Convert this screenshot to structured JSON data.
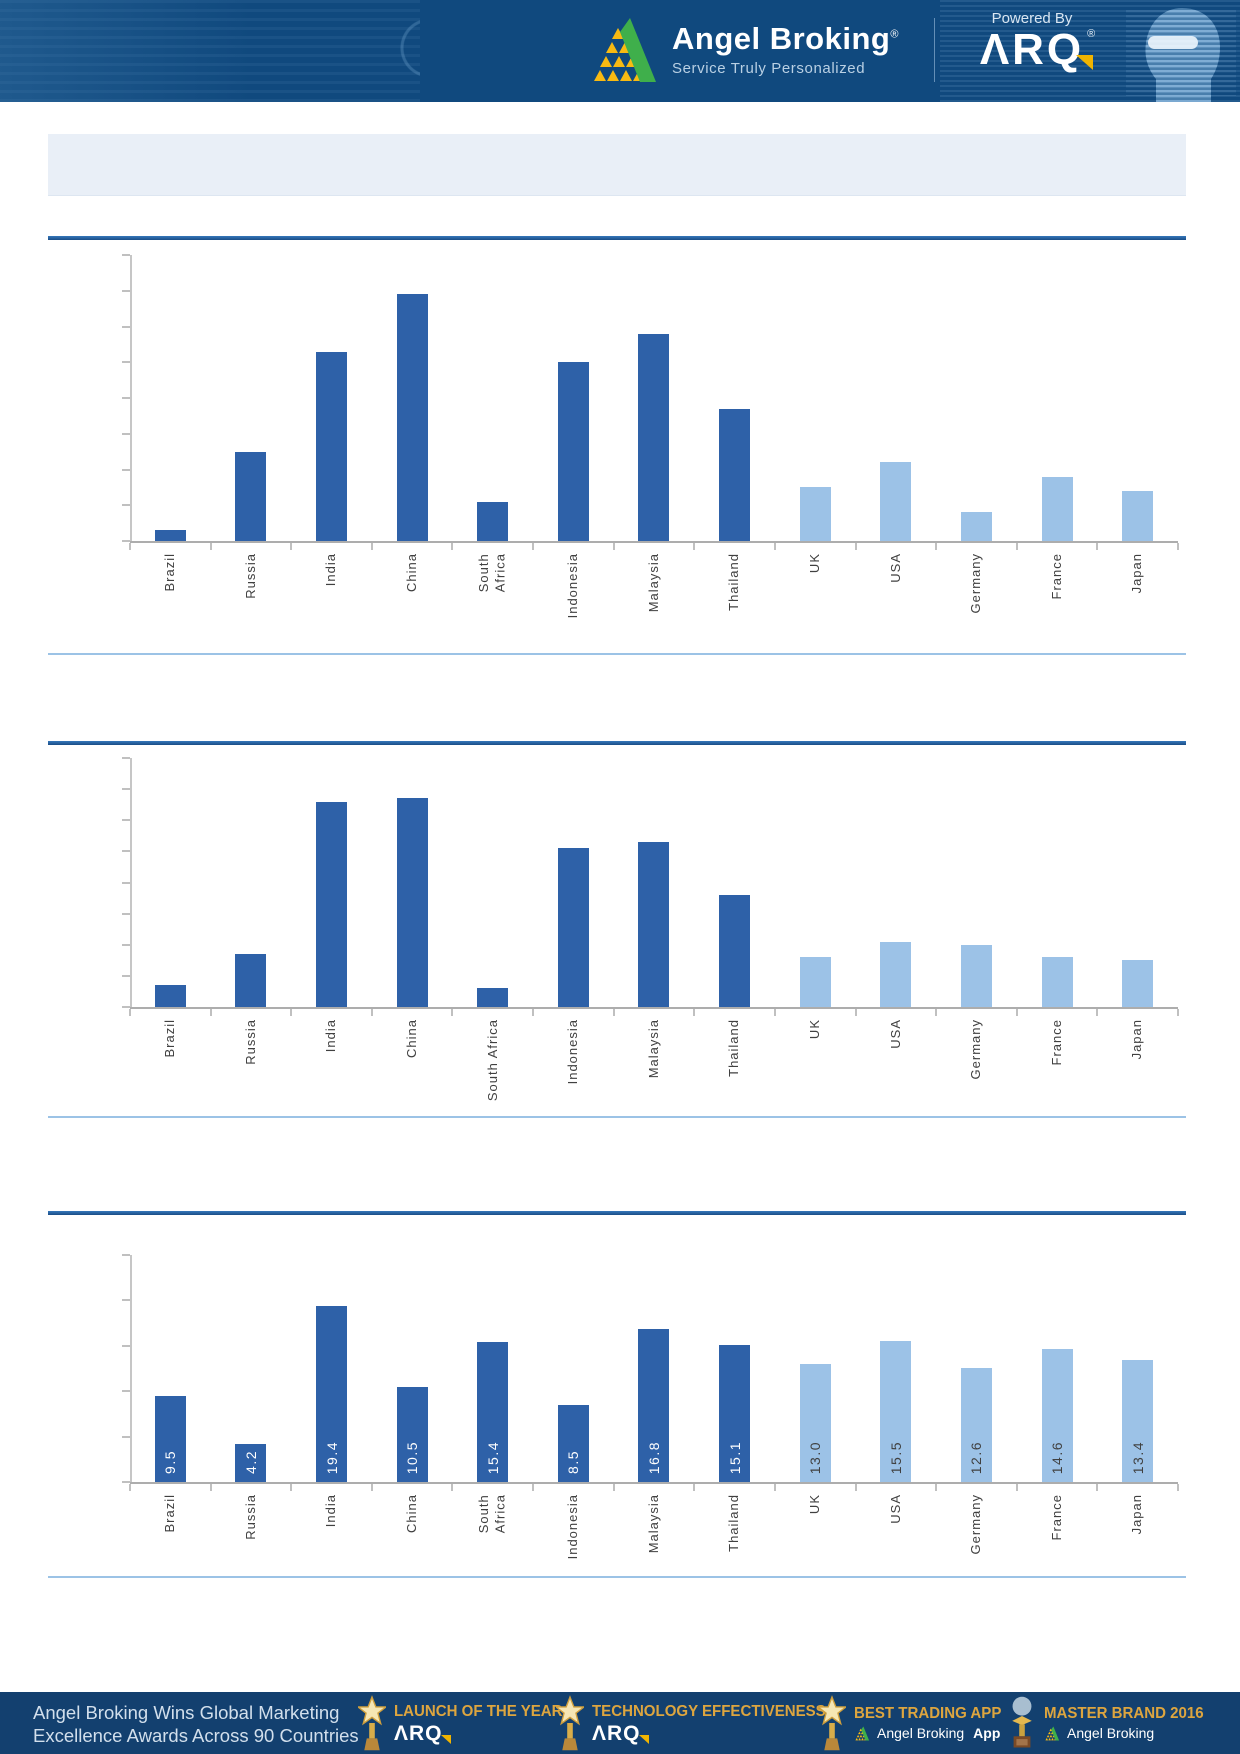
{
  "header": {
    "brand_name": "Angel Broking",
    "brand_reg": "®",
    "tagline": "Service Truly Personalized",
    "powered_by": "Powered By",
    "arq_text": "ARQ",
    "arq_reg": "®"
  },
  "title_bar": {
    "text": ""
  },
  "chart_data": [
    {
      "type": "bar",
      "title": "",
      "categories": [
        "Brazil",
        "Russia",
        "India",
        "China",
        "South\nAfrica",
        "Indonesia",
        "Malaysia",
        "Thailand",
        "UK",
        "USA",
        "Germany",
        "France",
        "Japan"
      ],
      "values": [
        0.3,
        2.5,
        5.3,
        6.9,
        1.1,
        5.0,
        5.8,
        3.7,
        1.5,
        2.2,
        0.8,
        1.8,
        1.4
      ],
      "ylim": [
        0,
        8
      ],
      "y_tick_interval": 1,
      "y_tick_labels_visible": false,
      "data_labels_visible": false,
      "gridlines": false,
      "legend": "none",
      "bar_colors": {
        "emerging": "#2e61a8",
        "developed": "#9cc2e7"
      },
      "developed_start_index": 8
    },
    {
      "type": "bar",
      "title": "",
      "categories": [
        "Brazil",
        "Russia",
        "India",
        "China",
        "South Africa",
        "Indonesia",
        "Malaysia",
        "Thailand",
        "UK",
        "USA",
        "Germany",
        "France",
        "Japan"
      ],
      "values": [
        0.7,
        1.7,
        6.6,
        6.7,
        0.6,
        5.1,
        5.3,
        3.6,
        1.6,
        2.1,
        2.0,
        1.6,
        1.5
      ],
      "ylim": [
        0,
        8
      ],
      "y_tick_interval": 1,
      "y_tick_labels_visible": false,
      "data_labels_visible": false,
      "gridlines": false,
      "legend": "none",
      "bar_colors": {
        "emerging": "#2e61a8",
        "developed": "#9cc2e7"
      },
      "developed_start_index": 8
    },
    {
      "type": "bar",
      "title": "",
      "categories": [
        "Brazil",
        "Russia",
        "India",
        "China",
        "South\nAfrica",
        "Indonesia",
        "Malaysia",
        "Thailand",
        "UK",
        "USA",
        "Germany",
        "France",
        "Japan"
      ],
      "values": [
        9.5,
        4.2,
        19.4,
        10.5,
        15.4,
        8.5,
        16.8,
        15.1,
        13.0,
        15.5,
        12.6,
        14.6,
        13.4
      ],
      "ylim": [
        0,
        25
      ],
      "y_tick_interval": 5,
      "y_tick_labels_visible": false,
      "data_labels_visible": true,
      "gridlines": false,
      "legend": "none",
      "bar_colors": {
        "emerging": "#2e61a8",
        "developed": "#9cc2e7"
      },
      "developed_start_index": 8,
      "data_label_colors": {
        "on_emerging": "#ffffff",
        "on_developed": "#404040"
      }
    }
  ],
  "footer": {
    "message_line1": "Angel Broking Wins Global Marketing",
    "message_line2": "Excellence Awards Across 90 Countries",
    "awards": [
      {
        "icon": "star-trophy",
        "title": "LAUNCH OF THE YEAR",
        "brand": "ARQ",
        "brand_type": "arq-logo"
      },
      {
        "icon": "star-trophy",
        "title": "TECHNOLOGY EFFECTIVENESS",
        "brand": "ARQ",
        "brand_type": "arq-logo"
      },
      {
        "icon": "star-trophy",
        "title": "BEST TRADING APP",
        "brand": "Angel Broking App",
        "brand_bold": "App",
        "brand_type": "angel-logo"
      },
      {
        "icon": "globe-trophy",
        "title": "MASTER BRAND 2016",
        "brand": "Angel Broking",
        "brand_type": "angel-logo"
      }
    ]
  }
}
